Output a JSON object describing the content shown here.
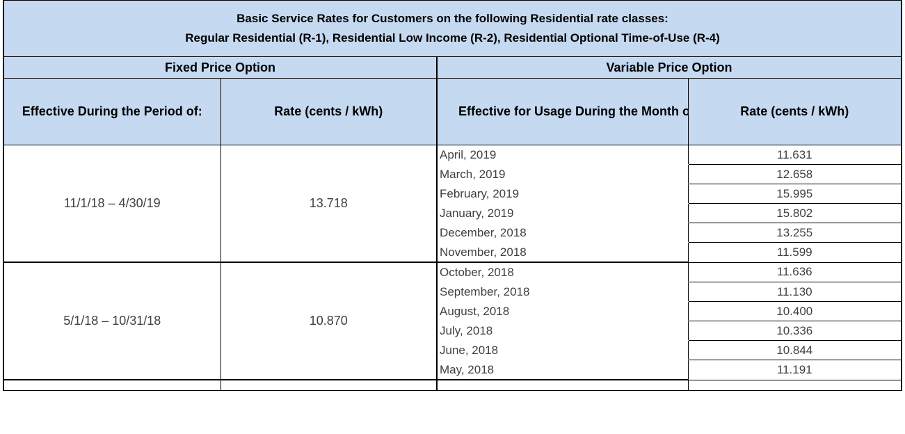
{
  "table": {
    "title_line1": "Basic Service Rates for Customers on the following Residential rate classes:",
    "title_line2": "Regular Residential (R-1), Residential Low Income (R-2), Residential Optional Time-of-Use (R-4)",
    "fixed_option": "Fixed Price Option",
    "variable_option": "Variable Price Option",
    "col_period": "Effective During the Period of:",
    "col_fixed_rate": "Rate (cents / kWh)",
    "col_month": "Effective for Usage During the Month of:",
    "col_variable_rate": "Rate (cents / kWh)",
    "groups": [
      {
        "period": "11/1/18 – 4/30/19",
        "rate": "13.718",
        "months": [
          {
            "month": "April, 2019",
            "rate": "11.631"
          },
          {
            "month": "March, 2019",
            "rate": "12.658"
          },
          {
            "month": "February, 2019",
            "rate": "15.995"
          },
          {
            "month": "January, 2019",
            "rate": "15.802"
          },
          {
            "month": "December, 2018",
            "rate": "13.255"
          },
          {
            "month": "November, 2018",
            "rate": "11.599"
          }
        ]
      },
      {
        "period": "5/1/18 – 10/31/18",
        "rate": "10.870",
        "months": [
          {
            "month": "October, 2018",
            "rate": "11.636"
          },
          {
            "month": "September, 2018",
            "rate": "11.130"
          },
          {
            "month": "August, 2018",
            "rate": "10.400"
          },
          {
            "month": "July, 2018",
            "rate": "10.336"
          },
          {
            "month": "June, 2018",
            "rate": "10.844"
          },
          {
            "month": "May, 2018",
            "rate": "11.191"
          }
        ]
      }
    ]
  },
  "colors": {
    "header_fill": "#c5d9f1",
    "body_text": "#404040"
  }
}
